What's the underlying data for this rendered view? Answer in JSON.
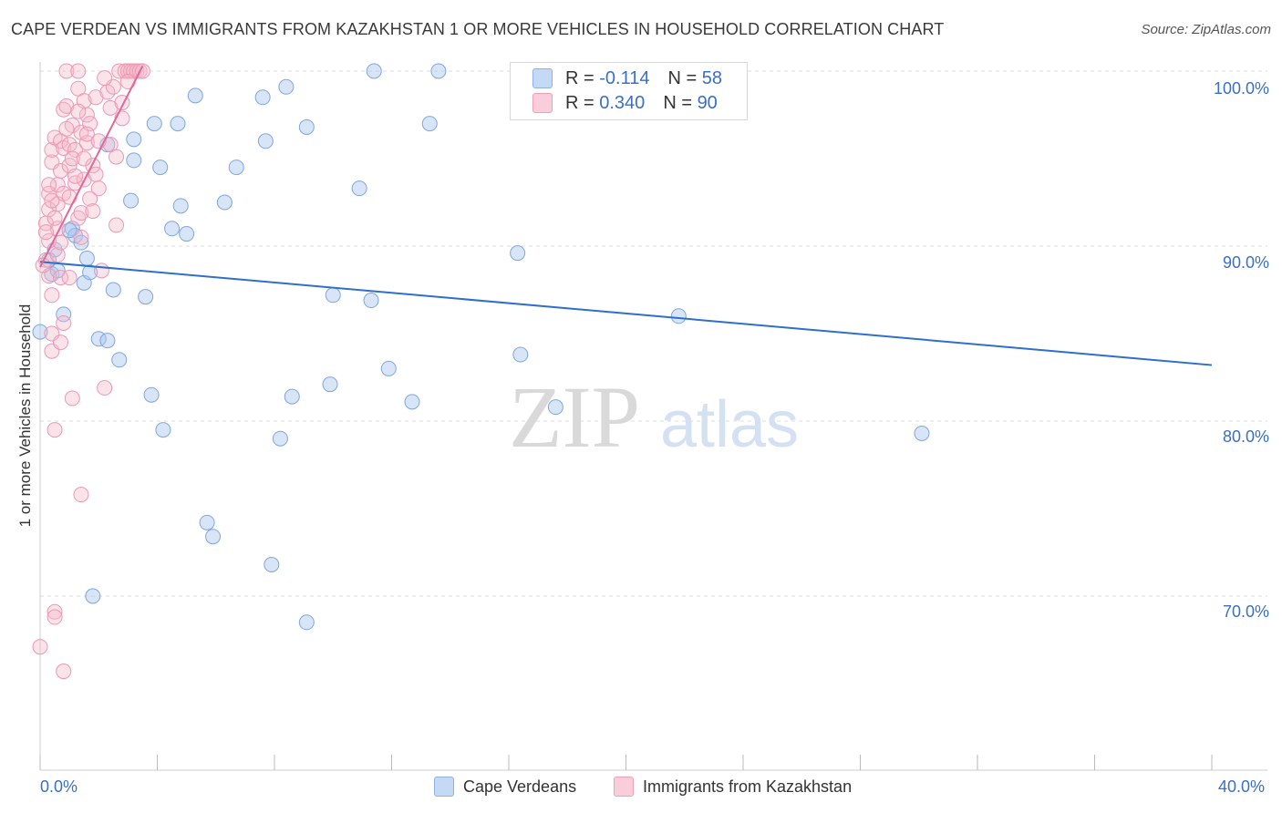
{
  "header": {
    "title": "CAPE VERDEAN VS IMMIGRANTS FROM KAZAKHSTAN 1 OR MORE VEHICLES IN HOUSEHOLD CORRELATION CHART",
    "source": "Source: ZipAtlas.com"
  },
  "legend": {
    "r_label": "R = ",
    "n_label": "N = ",
    "series": [
      {
        "name": "Cape Verdeans",
        "r": "-0.114",
        "n": "58",
        "color": "#a9c6ee",
        "stroke": "#6f9bd6"
      },
      {
        "name": "Immigrants from Kazakhstan",
        "r": "0.340",
        "n": "90",
        "color": "#f5b8cb",
        "stroke": "#e98aa7"
      }
    ]
  },
  "watermark": {
    "part1": "ZIP",
    "part2": "atlas"
  },
  "chart_data": {
    "type": "scatter",
    "title": "CAPE VERDEAN VS IMMIGRANTS FROM KAZAKHSTAN 1 OR MORE VEHICLES IN HOUSEHOLD CORRELATION CHART",
    "xlabel": "",
    "ylabel": "1 or more Vehicles in Household",
    "xlim": [
      0,
      40
    ],
    "ylim": [
      60,
      101
    ],
    "x_tick_labels": [
      "0.0%",
      "40.0%"
    ],
    "y_ticks": [
      70,
      80,
      90,
      100
    ],
    "y_tick_labels": [
      "70.0%",
      "80.0%",
      "90.0%",
      "100.0%"
    ],
    "grid": true,
    "series": [
      {
        "name": "Cape Verdeans",
        "color": "#a9c6ee",
        "trend": {
          "x": [
            0,
            40
          ],
          "y": [
            89.1,
            83.2
          ]
        },
        "points": [
          [
            0.0,
            85.1
          ],
          [
            0.4,
            88.4
          ],
          [
            0.5,
            89.8
          ],
          [
            0.6,
            88.6
          ],
          [
            0.8,
            86.1
          ],
          [
            1.1,
            91.0
          ],
          [
            1.2,
            90.6
          ],
          [
            1.4,
            90.2
          ],
          [
            1.5,
            87.9
          ],
          [
            1.6,
            89.3
          ],
          [
            1.7,
            88.5
          ],
          [
            1.8,
            70.0
          ],
          [
            2.0,
            84.7
          ],
          [
            2.3,
            84.6
          ],
          [
            2.3,
            95.8
          ],
          [
            2.5,
            87.5
          ],
          [
            2.7,
            83.5
          ],
          [
            3.1,
            92.6
          ],
          [
            3.2,
            96.1
          ],
          [
            3.2,
            94.9
          ],
          [
            3.6,
            87.1
          ],
          [
            3.8,
            81.5
          ],
          [
            3.9,
            97.0
          ],
          [
            4.1,
            94.5
          ],
          [
            4.2,
            79.5
          ],
          [
            4.5,
            91.0
          ],
          [
            4.7,
            97.0
          ],
          [
            4.8,
            92.3
          ],
          [
            5.0,
            90.7
          ],
          [
            5.3,
            98.6
          ],
          [
            5.7,
            74.2
          ],
          [
            5.9,
            73.4
          ],
          [
            6.3,
            92.5
          ],
          [
            6.7,
            94.5
          ],
          [
            7.6,
            98.5
          ],
          [
            7.7,
            96.0
          ],
          [
            7.9,
            71.8
          ],
          [
            8.2,
            79.0
          ],
          [
            8.4,
            99.1
          ],
          [
            8.6,
            81.4
          ],
          [
            9.1,
            96.8
          ],
          [
            9.1,
            68.5
          ],
          [
            9.9,
            82.1
          ],
          [
            10.0,
            87.2
          ],
          [
            10.9,
            93.3
          ],
          [
            11.3,
            86.9
          ],
          [
            11.4,
            100.0
          ],
          [
            11.9,
            83.0
          ],
          [
            12.7,
            81.1
          ],
          [
            13.3,
            97.0
          ],
          [
            13.6,
            100.0
          ],
          [
            16.3,
            89.6
          ],
          [
            16.4,
            83.8
          ],
          [
            17.6,
            80.8
          ],
          [
            21.8,
            86.0
          ],
          [
            30.1,
            79.3
          ],
          [
            0.3,
            89.2
          ],
          [
            1.0,
            90.9
          ]
        ]
      },
      {
        "name": "Immigrants from Kazakhstan",
        "color": "#f5b8cb",
        "trend": {
          "x": [
            0,
            3.5
          ],
          "y": [
            88.8,
            100.3
          ]
        },
        "points": [
          [
            0.0,
            67.1
          ],
          [
            0.2,
            89.2
          ],
          [
            0.2,
            91.3
          ],
          [
            0.3,
            93.0
          ],
          [
            0.3,
            92.1
          ],
          [
            0.3,
            90.3
          ],
          [
            0.3,
            88.3
          ],
          [
            0.4,
            87.2
          ],
          [
            0.4,
            85.0
          ],
          [
            0.4,
            84.0
          ],
          [
            0.4,
            94.8
          ],
          [
            0.4,
            95.5
          ],
          [
            0.5,
            79.5
          ],
          [
            0.5,
            69.1
          ],
          [
            0.5,
            68.8
          ],
          [
            0.5,
            96.2
          ],
          [
            0.6,
            93.5
          ],
          [
            0.6,
            92.4
          ],
          [
            0.6,
            91.0
          ],
          [
            0.7,
            96.0
          ],
          [
            0.7,
            94.3
          ],
          [
            0.7,
            88.2
          ],
          [
            0.7,
            84.5
          ],
          [
            0.8,
            65.7
          ],
          [
            0.8,
            97.8
          ],
          [
            0.8,
            95.6
          ],
          [
            0.8,
            93.0
          ],
          [
            0.8,
            85.6
          ],
          [
            0.9,
            100.0
          ],
          [
            0.9,
            98.0
          ],
          [
            1.0,
            95.8
          ],
          [
            1.0,
            94.6
          ],
          [
            1.0,
            92.8
          ],
          [
            1.0,
            88.2
          ],
          [
            1.1,
            81.3
          ],
          [
            1.1,
            96.9
          ],
          [
            1.2,
            95.5
          ],
          [
            1.2,
            93.6
          ],
          [
            1.3,
            99.0
          ],
          [
            1.3,
            100.0
          ],
          [
            1.3,
            91.6
          ],
          [
            1.4,
            75.8
          ],
          [
            1.4,
            96.5
          ],
          [
            1.4,
            90.5
          ],
          [
            1.5,
            93.8
          ],
          [
            1.5,
            98.3
          ],
          [
            1.6,
            97.5
          ],
          [
            1.6,
            95.9
          ],
          [
            1.7,
            97.0
          ],
          [
            1.7,
            92.7
          ],
          [
            1.8,
            94.6
          ],
          [
            1.9,
            98.5
          ],
          [
            2.0,
            93.3
          ],
          [
            2.1,
            88.6
          ],
          [
            2.2,
            81.9
          ],
          [
            2.3,
            98.8
          ],
          [
            2.4,
            95.8
          ],
          [
            2.5,
            99.1
          ],
          [
            2.6,
            91.2
          ],
          [
            2.7,
            100.0
          ],
          [
            2.8,
            97.3
          ],
          [
            2.9,
            100.0
          ],
          [
            3.0,
            100.0
          ],
          [
            3.1,
            100.0
          ],
          [
            3.2,
            100.0
          ],
          [
            3.3,
            100.0
          ],
          [
            3.4,
            100.0
          ],
          [
            3.5,
            100.0
          ],
          [
            0.1,
            88.9
          ],
          [
            0.2,
            90.8
          ],
          [
            0.3,
            93.5
          ],
          [
            0.5,
            91.6
          ],
          [
            0.6,
            89.5
          ],
          [
            0.7,
            90.2
          ],
          [
            0.9,
            96.7
          ],
          [
            1.1,
            95.0
          ],
          [
            1.2,
            94.0
          ],
          [
            1.3,
            97.7
          ],
          [
            1.4,
            91.9
          ],
          [
            1.5,
            95.0
          ],
          [
            1.6,
            96.4
          ],
          [
            1.8,
            92.0
          ],
          [
            1.9,
            94.1
          ],
          [
            2.0,
            96.0
          ],
          [
            2.2,
            99.6
          ],
          [
            2.4,
            97.9
          ],
          [
            2.6,
            95.1
          ],
          [
            2.8,
            98.2
          ],
          [
            3.0,
            99.4
          ],
          [
            0.4,
            92.6
          ]
        ]
      }
    ]
  }
}
